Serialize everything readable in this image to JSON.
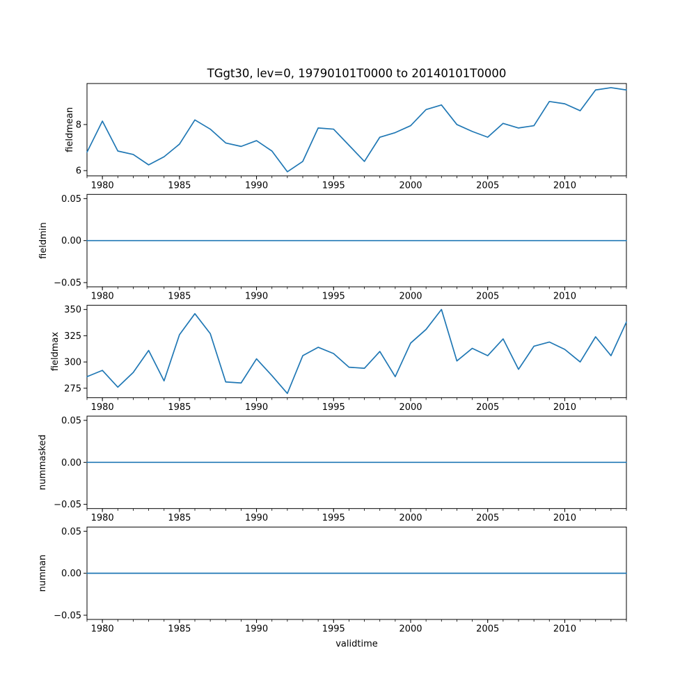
{
  "title": "TGgt30, lev=0, 19790101T0000 to 20140101T0000",
  "background": "#ffffff",
  "text_color": "#000000",
  "line_color": "#1f77b4",
  "x_axis": {
    "label": "validtime",
    "range": [
      1979,
      2014
    ],
    "years": [
      1979,
      1980,
      1981,
      1982,
      1983,
      1984,
      1985,
      1986,
      1987,
      1988,
      1989,
      1990,
      1991,
      1992,
      1993,
      1994,
      1995,
      1996,
      1997,
      1998,
      1999,
      2000,
      2001,
      2002,
      2003,
      2004,
      2005,
      2006,
      2007,
      2008,
      2009,
      2010,
      2011,
      2012,
      2013,
      2014
    ],
    "major_ticks": [
      1980,
      1985,
      1990,
      1995,
      2000,
      2005,
      2010
    ],
    "major_tick_labels": [
      "1980",
      "1985",
      "1990",
      "1995",
      "2000",
      "2005",
      "2010"
    ],
    "minor_tick_step_years": 1
  },
  "chart_data": [
    {
      "type": "line",
      "series": "fieldmean",
      "ylabel": "fieldmean",
      "ylim": [
        5.77,
        9.78
      ],
      "yticks": [
        6,
        8
      ],
      "ytick_labels": [
        "6",
        "8"
      ],
      "values": [
        6.8,
        8.15,
        6.85,
        6.7,
        6.25,
        6.6,
        7.15,
        8.2,
        7.8,
        7.2,
        7.05,
        7.3,
        6.85,
        5.95,
        6.4,
        7.85,
        7.8,
        7.1,
        6.4,
        7.45,
        7.65,
        7.95,
        8.65,
        8.85,
        8.0,
        7.7,
        7.45,
        8.05,
        7.85,
        7.95,
        9.0,
        8.9,
        8.6,
        9.5,
        9.6,
        9.5
      ]
    },
    {
      "type": "line",
      "series": "fieldmin",
      "ylabel": "fieldmin",
      "ylim": [
        -0.055,
        0.055
      ],
      "yticks": [
        -0.05,
        0,
        0.05
      ],
      "ytick_labels": [
        "−0.05",
        "0.00",
        "0.05"
      ],
      "values": [
        0,
        0,
        0,
        0,
        0,
        0,
        0,
        0,
        0,
        0,
        0,
        0,
        0,
        0,
        0,
        0,
        0,
        0,
        0,
        0,
        0,
        0,
        0,
        0,
        0,
        0,
        0,
        0,
        0,
        0,
        0,
        0,
        0,
        0,
        0,
        0
      ]
    },
    {
      "type": "line",
      "series": "fieldmax",
      "ylabel": "fieldmax",
      "ylim": [
        266,
        354
      ],
      "yticks": [
        275,
        300,
        325,
        350
      ],
      "ytick_labels": [
        "275",
        "300",
        "325",
        "350"
      ],
      "values": [
        286,
        292,
        276,
        290,
        311,
        282,
        326,
        346,
        327,
        281,
        280,
        303,
        287,
        270,
        306,
        314,
        308,
        295,
        294,
        310,
        286,
        318,
        331,
        350,
        301,
        313,
        306,
        322,
        293,
        315,
        319,
        312,
        300,
        324,
        306,
        338
      ]
    },
    {
      "type": "line",
      "series": "nummasked",
      "ylabel": "nummasked",
      "ylim": [
        -0.055,
        0.055
      ],
      "yticks": [
        -0.05,
        0,
        0.05
      ],
      "ytick_labels": [
        "−0.05",
        "0.00",
        "0.05"
      ],
      "values": [
        0,
        0,
        0,
        0,
        0,
        0,
        0,
        0,
        0,
        0,
        0,
        0,
        0,
        0,
        0,
        0,
        0,
        0,
        0,
        0,
        0,
        0,
        0,
        0,
        0,
        0,
        0,
        0,
        0,
        0,
        0,
        0,
        0,
        0,
        0,
        0
      ]
    },
    {
      "type": "line",
      "series": "numnan",
      "ylabel": "numnan",
      "ylim": [
        -0.055,
        0.055
      ],
      "yticks": [
        -0.05,
        0,
        0.05
      ],
      "ytick_labels": [
        "−0.05",
        "0.00",
        "0.05"
      ],
      "values": [
        0,
        0,
        0,
        0,
        0,
        0,
        0,
        0,
        0,
        0,
        0,
        0,
        0,
        0,
        0,
        0,
        0,
        0,
        0,
        0,
        0,
        0,
        0,
        0,
        0,
        0,
        0,
        0,
        0,
        0,
        0,
        0,
        0,
        0,
        0,
        0
      ]
    }
  ]
}
